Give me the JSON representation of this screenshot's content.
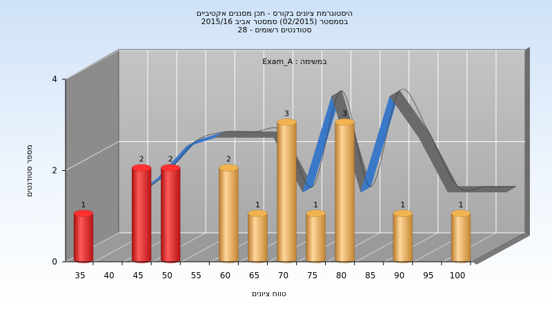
{
  "chart_data": {
    "type": "bar",
    "title": [
      "היסטוגרמת ציונים בקורס - תכן מסננים אקטיביים",
      "בסמסטר  (02/2015)  סמסטר אביב 2015/16",
      "סטודנטים רשומים - 28"
    ],
    "subtitle": "במשימה : Exam_A",
    "xlabel": "טווח ציונים",
    "ylabel": "מספר סטודנטים",
    "x_ticks": [
      "35",
      "40",
      "45",
      "50",
      "55",
      "60",
      "65",
      "70",
      "75",
      "80",
      "85",
      "90",
      "95",
      "100"
    ],
    "y_ticks": [
      "0",
      "2",
      "4"
    ],
    "ylim": [
      0,
      4
    ],
    "bars": [
      {
        "x": 35,
        "value": 1,
        "label": "1",
        "color": "red"
      },
      {
        "x": 45,
        "value": 2,
        "label": "2",
        "color": "red"
      },
      {
        "x": 50,
        "value": 2,
        "label": "2",
        "color": "red"
      },
      {
        "x": 60,
        "value": 2,
        "label": "2",
        "color": "orange"
      },
      {
        "x": 65,
        "value": 1,
        "label": "1",
        "color": "orange"
      },
      {
        "x": 70,
        "value": 3,
        "label": "3",
        "color": "orange"
      },
      {
        "x": 75,
        "value": 1,
        "label": "1",
        "color": "orange"
      },
      {
        "x": 80,
        "value": 3,
        "label": "3",
        "color": "orange"
      },
      {
        "x": 90,
        "value": 1,
        "label": "1",
        "color": "orange"
      },
      {
        "x": 100,
        "value": 1,
        "label": "1",
        "color": "orange"
      }
    ],
    "curve": {
      "x": [
        42,
        45,
        50,
        55,
        60,
        65,
        70,
        75,
        80,
        85,
        90,
        95,
        100,
        105
      ],
      "y": [
        1.3,
        1.6,
        2.3,
        2.5,
        2.5,
        2.5,
        1.3,
        3.4,
        1.3,
        3.4,
        2.5,
        1.3,
        1.3,
        1.3
      ]
    },
    "colors": {
      "red_bar": "#e8201f",
      "orange_bar": "#e8a640",
      "curve_front": "#3a78c8",
      "curve_back": "#6a6a6a",
      "wall_back": "#b8b8b8",
      "wall_side": "#8c8c8c",
      "floor": "#9a9a9a"
    },
    "grid": true,
    "legend": "none"
  }
}
